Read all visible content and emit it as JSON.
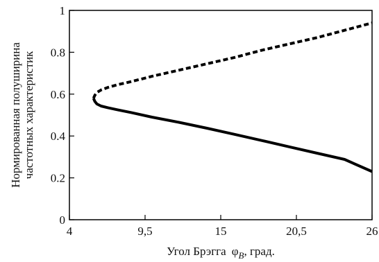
{
  "chart_data": {
    "type": "line",
    "title": "",
    "xlabel": "Угол Брэгга",
    "xlabel_symbol": "φ",
    "xlabel_subscript": "B",
    "xlabel_unit": ", град.",
    "ylabel_line1": "Нормированная полуширина",
    "ylabel_line2": "частотных характеристик",
    "xlim": [
      4,
      26
    ],
    "ylim": [
      0,
      1
    ],
    "x_ticks": [
      4,
      9.5,
      15,
      20.5,
      26
    ],
    "x_tick_labels": [
      "4",
      "9,5",
      "15",
      "20,5",
      "26"
    ],
    "y_ticks": [
      0,
      0.2,
      0.4,
      0.6,
      0.8,
      1
    ],
    "y_tick_labels": [
      "0",
      "0.2",
      "0.4",
      "0.6",
      "0.8",
      "1"
    ],
    "grid": false,
    "legend": "none",
    "series": [
      {
        "style": "dashed",
        "color": "#000000",
        "x": [
          5.75,
          5.85,
          6.0,
          6.3,
          6.8,
          7.5,
          8.5,
          10,
          12,
          14,
          16,
          18,
          20,
          22,
          24,
          26
        ],
        "y": [
          0.58,
          0.595,
          0.608,
          0.62,
          0.632,
          0.645,
          0.66,
          0.685,
          0.715,
          0.745,
          0.775,
          0.81,
          0.84,
          0.87,
          0.905,
          0.94
        ]
      },
      {
        "style": "solid",
        "color": "#000000",
        "x": [
          5.75,
          5.85,
          6.0,
          6.3,
          6.8,
          7.5,
          8.5,
          10,
          12,
          14,
          16,
          18,
          20,
          22,
          24,
          26
        ],
        "y": [
          0.58,
          0.565,
          0.553,
          0.543,
          0.535,
          0.525,
          0.512,
          0.49,
          0.465,
          0.437,
          0.408,
          0.378,
          0.348,
          0.318,
          0.288,
          0.23
        ]
      }
    ]
  }
}
